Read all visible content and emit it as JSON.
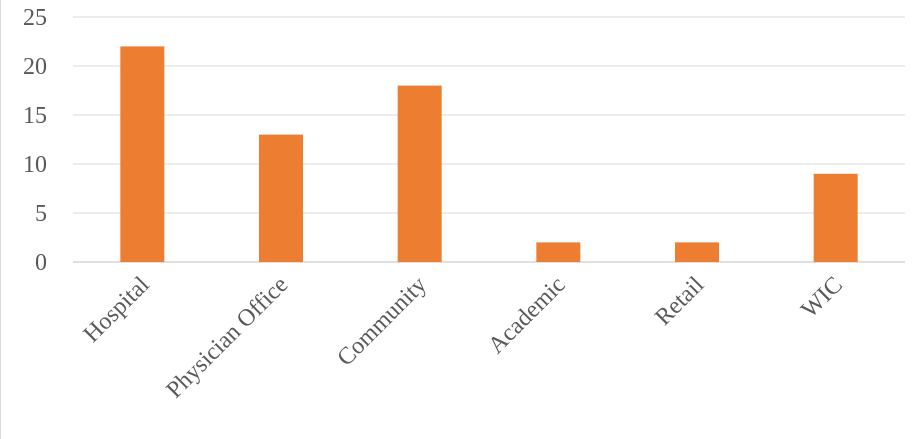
{
  "chart_data": {
    "type": "bar",
    "title": "",
    "xlabel": "",
    "ylabel": "",
    "categories": [
      "Hospital",
      "Physician Office",
      "Community",
      "Academic",
      "Retail",
      "WIC"
    ],
    "values": [
      22,
      13,
      18,
      2,
      2,
      9
    ],
    "ylim": [
      0,
      25
    ],
    "yticks": [
      "0",
      "5",
      "10",
      "15",
      "20",
      "25"
    ],
    "grid": true,
    "legend": "none",
    "bar_color": "#ED7D31"
  }
}
